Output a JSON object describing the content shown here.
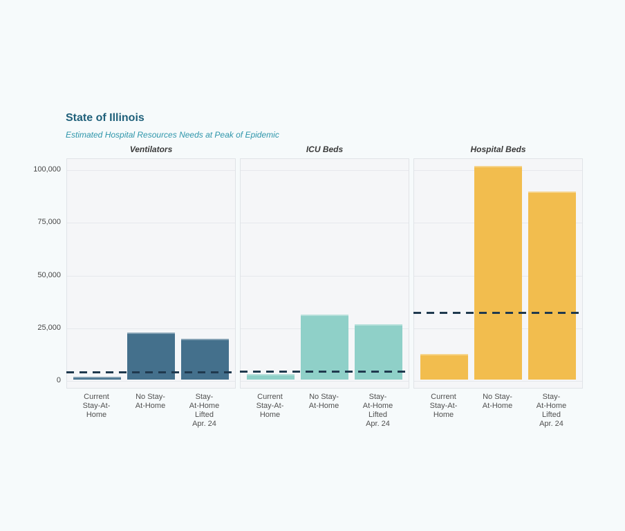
{
  "page": {
    "background_color": "#f6fafb"
  },
  "header": {
    "title": "State of Illinois",
    "subtitle": "Estimated Hospital Resources Needs at Peak of Epidemic",
    "title_color": "#1f607a",
    "subtitle_color": "#2d95aa"
  },
  "chart_data": {
    "type": "bar",
    "title": "State of Illinois",
    "subtitle": "Estimated Hospital Resources Needs at Peak of Epidemic",
    "categories": [
      "Current\nStay-At-\nHome",
      "No Stay-\nAt-Home",
      "Stay-\nAt-Home\nLifted\nApr. 24"
    ],
    "y_ticks": [
      {
        "value": 0,
        "label": "0"
      },
      {
        "value": 25000,
        "label": "25,000"
      },
      {
        "value": 50000,
        "label": "50,000"
      },
      {
        "value": 75000,
        "label": "75,000"
      },
      {
        "value": 100000,
        "label": "100,000"
      }
    ],
    "ylim": [
      0,
      105000
    ],
    "grid": true,
    "legend_position": "none",
    "capacity_line_color": "#1f394e",
    "capacity_line_style": "dashed",
    "facets": [
      {
        "title": "Ventilators",
        "bar_color": "#44708c",
        "values": [
          1400,
          22400,
          19200
        ],
        "capacity_line": 3300
      },
      {
        "title": "ICU Beds",
        "bar_color": "#8fd0c8",
        "values": [
          2500,
          30900,
          26300
        ],
        "capacity_line": 3800
      },
      {
        "title": "Hospital Beds",
        "bar_color": "#f2bd4e",
        "values": [
          12200,
          101200,
          89300
        ],
        "capacity_line": 31500
      }
    ]
  }
}
